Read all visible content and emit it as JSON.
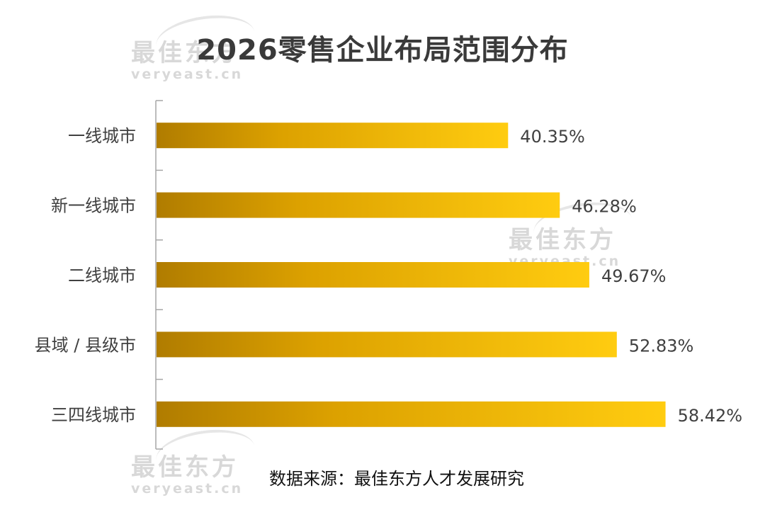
{
  "chart_data": {
    "type": "bar",
    "orientation": "horizontal",
    "title": "2026零售企业布局范围分布",
    "categories": [
      "一线城市",
      "新一线城市",
      "二线城市",
      "县域 / 县级市",
      "三四线城市"
    ],
    "values": [
      40.35,
      46.28,
      49.67,
      52.83,
      58.42
    ],
    "value_labels": [
      "40.35%",
      "46.28%",
      "49.67%",
      "52.83%",
      "58.42%"
    ],
    "xlabel": "",
    "ylabel": "",
    "grid": false,
    "legend": "none",
    "bar_color": "#f0b800"
  },
  "source": "数据来源：最佳东方人才发展研究",
  "watermark": {
    "cn": "最佳东方",
    "en": "veryeast.cn"
  }
}
